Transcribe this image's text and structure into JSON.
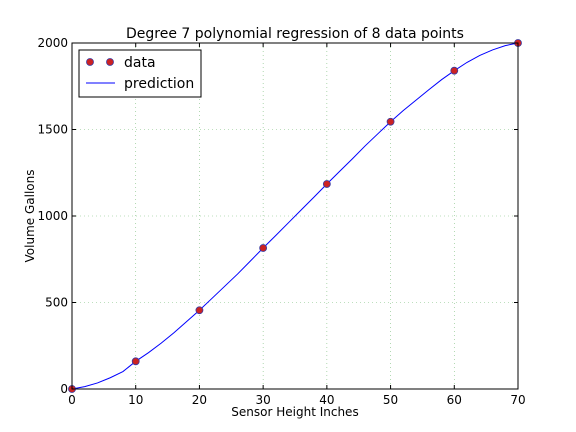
{
  "chart_data": {
    "type": "scatter",
    "title": "Degree 7 polynomial regression of 8 data points",
    "xlabel": "Sensor Height Inches",
    "ylabel": "Volume Gallons",
    "xlim": [
      0,
      70
    ],
    "ylim": [
      0,
      2000
    ],
    "xticks": [
      0,
      10,
      20,
      30,
      40,
      50,
      60,
      70
    ],
    "yticks": [
      0,
      500,
      1000,
      1500,
      2000
    ],
    "grid": true,
    "legend_position": "top-left",
    "series": [
      {
        "name": "data",
        "kind": "markers",
        "color": "#cc2222",
        "edge_color": "#3a3aa0",
        "x": [
          0,
          10,
          20,
          30,
          40,
          50,
          60,
          70
        ],
        "y": [
          0,
          160,
          455,
          815,
          1185,
          1545,
          1840,
          2000
        ]
      },
      {
        "name": "prediction",
        "kind": "line",
        "color": "#0000ff",
        "x": [
          0,
          2,
          4,
          6,
          8,
          10,
          12,
          14,
          16,
          18,
          20,
          22,
          24,
          26,
          28,
          30,
          32,
          34,
          36,
          38,
          40,
          42,
          44,
          46,
          48,
          50,
          52,
          54,
          56,
          58,
          60,
          62,
          64,
          66,
          68,
          70
        ],
        "y": [
          0,
          14,
          35,
          65,
          101,
          160,
          210,
          265,
          325,
          390,
          455,
          525,
          595,
          665,
          740,
          815,
          888,
          962,
          1036,
          1110,
          1185,
          1258,
          1330,
          1405,
          1475,
          1545,
          1610,
          1670,
          1730,
          1788,
          1840,
          1888,
          1928,
          1960,
          1985,
          2000
        ]
      }
    ]
  }
}
